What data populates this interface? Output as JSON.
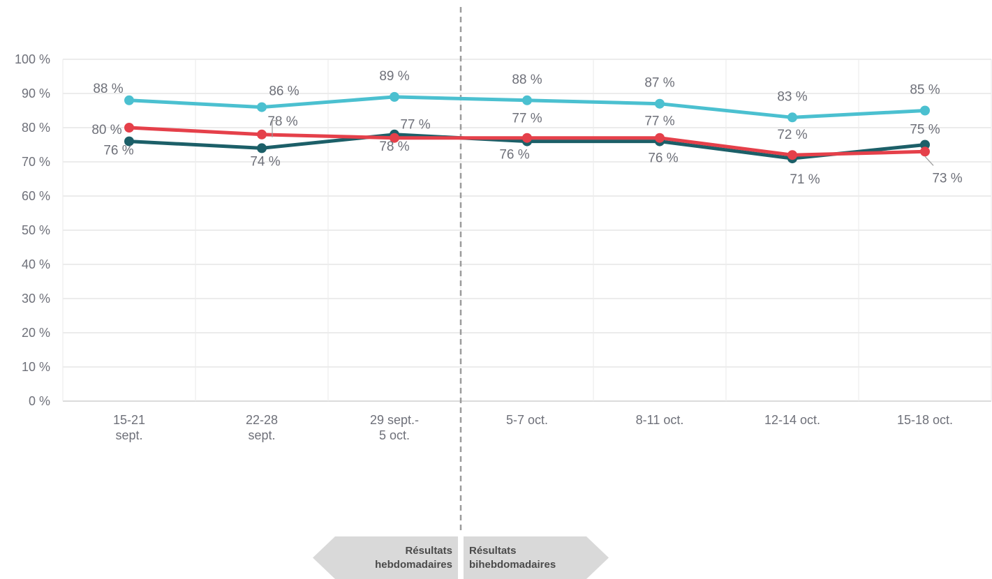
{
  "chart_data": {
    "type": "line",
    "categories": [
      "15-21 sept.",
      "22-28 sept.",
      "29 sept.- 5 oct.",
      "5-7 oct.",
      "8-11 oct.",
      "12-14 oct.",
      "15-18 oct."
    ],
    "category_lines": [
      [
        "15-21",
        "sept."
      ],
      [
        "22-28",
        "sept."
      ],
      [
        "29 sept.-",
        "5 oct."
      ],
      [
        "5-7 oct."
      ],
      [
        "8-11 oct."
      ],
      [
        "12-14 oct."
      ],
      [
        "15-18 oct."
      ]
    ],
    "ylim": [
      0,
      100
    ],
    "yticks": [
      0,
      10,
      20,
      30,
      40,
      50,
      60,
      70,
      80,
      90,
      100
    ],
    "y_tick_suffix": " %",
    "grid": true,
    "series": [
      {
        "color": "#4bc0d0",
        "values": [
          88,
          86,
          89,
          88,
          87,
          83,
          85
        ],
        "labels": [
          "88 %",
          "86 %",
          "89 %",
          "88 %",
          "87 %",
          "83 %",
          "85 %"
        ]
      },
      {
        "color": "#1c5f68",
        "values": [
          76,
          74,
          78,
          76,
          76,
          71,
          75
        ],
        "labels": [
          "76 %",
          "74 %",
          "78 %",
          "76 %",
          "76 %",
          "71 %",
          "75 %"
        ]
      },
      {
        "color": "#e5404a",
        "values": [
          80,
          78,
          77,
          77,
          77,
          72,
          73
        ],
        "labels": [
          "80 %",
          "78 %",
          "77 %",
          "77 %",
          "77 %",
          "72 %",
          "73 %"
        ]
      }
    ],
    "period_labels": {
      "weekly": [
        "Résultats",
        "hebdomadaires"
      ],
      "biweekly": [
        "Résultats",
        "bihebdomadaires"
      ]
    }
  }
}
